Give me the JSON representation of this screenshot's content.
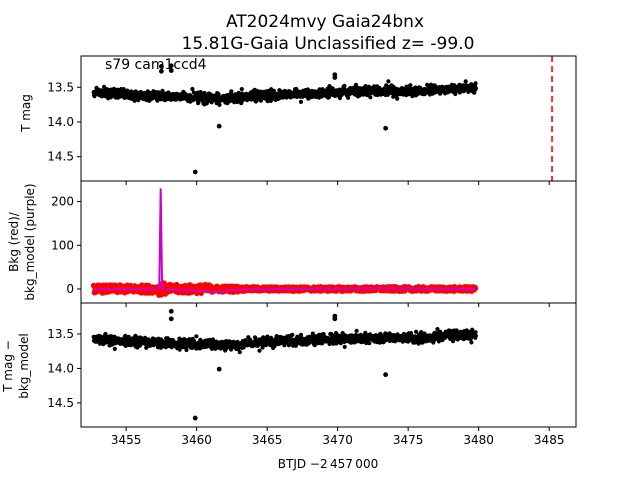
{
  "figure": {
    "title_line1": "AT2024mvy  Gaia24bnx",
    "title_line2": "15.81G-Gaia Unclassified z= -99.0",
    "annotation": "s79 cam1ccd4",
    "xlabel": "BTJD −2 457 000"
  },
  "chart_data": [
    {
      "type": "scatter",
      "panel": "top",
      "ylabel": "T mag",
      "y_inverted": true,
      "xlim": [
        3451.8,
        3486.9
      ],
      "ylim": [
        14.85,
        13.05
      ],
      "y_ticks": [
        "13.5",
        "14.0",
        "14.5"
      ],
      "y_tick_values": [
        13.5,
        14.0,
        14.5
      ],
      "series": [
        {
          "color": "#000000",
          "marker": "dot",
          "trend": [
            [
              3452.7,
              13.58
            ],
            [
              3455.0,
              13.6
            ],
            [
              3457.5,
              13.63
            ],
            [
              3460.0,
              13.65
            ],
            [
              3462.5,
              13.66
            ],
            [
              3464.0,
              13.63
            ],
            [
              3467.0,
              13.6
            ],
            [
              3470.0,
              13.57
            ],
            [
              3472.5,
              13.56
            ],
            [
              3475.0,
              13.55
            ],
            [
              3477.5,
              13.53
            ],
            [
              3479.8,
              13.51
            ]
          ],
          "scatter_width": 0.035,
          "outliers": [
            [
              3457.5,
              13.27
            ],
            [
              3457.5,
              13.2
            ],
            [
              3458.2,
              13.19
            ],
            [
              3458.2,
              13.26
            ],
            [
              3459.9,
              14.72
            ],
            [
              3461.6,
              14.06
            ],
            [
              3469.8,
              13.32
            ],
            [
              3469.8,
              13.36
            ],
            [
              3473.4,
              14.09
            ]
          ]
        }
      ],
      "vlines": [
        {
          "x": 3485.2,
          "color": "#ff0000",
          "style": "dashed"
        }
      ]
    },
    {
      "type": "line",
      "panel": "middle",
      "ylabel_line1": "Bkg (red)/",
      "ylabel_line2": "bkg_model (purple)",
      "xlim": [
        3451.8,
        3486.9
      ],
      "ylim": [
        -32,
        247
      ],
      "y_ticks": [
        "0",
        "100",
        "200"
      ],
      "y_tick_values": [
        0,
        100,
        200
      ],
      "series": [
        {
          "color": "#ff0000",
          "style": "band",
          "segments": [
            [
              3452.7,
              3457.3,
              9
            ],
            [
              3457.3,
              3457.8,
              14
            ],
            [
              3457.8,
              3461.0,
              10
            ],
            [
              3461.0,
              3463.0,
              7
            ],
            [
              3463.0,
              3479.8,
              5
            ]
          ]
        },
        {
          "color": "#cc00cc",
          "style": "line",
          "points": [
            [
              3452.7,
              0
            ],
            [
              3455.0,
              0
            ],
            [
              3457.2,
              1
            ],
            [
              3457.35,
              5
            ],
            [
              3457.45,
              230
            ],
            [
              3457.55,
              4
            ],
            [
              3457.7,
              0
            ],
            [
              3459.0,
              -2
            ],
            [
              3460.5,
              -4
            ],
            [
              3461.5,
              -7
            ],
            [
              3462.3,
              -3
            ],
            [
              3463.0,
              -1
            ],
            [
              3466.0,
              0
            ],
            [
              3470.0,
              1
            ],
            [
              3473.0,
              2
            ],
            [
              3476.0,
              1
            ],
            [
              3479.8,
              0
            ]
          ]
        }
      ]
    },
    {
      "type": "scatter",
      "panel": "bottom",
      "ylabel_line1": "T mag −",
      "ylabel_line2": "bkg_model",
      "y_inverted": true,
      "xlim": [
        3451.8,
        3486.9
      ],
      "ylim": [
        14.85,
        13.05
      ],
      "y_ticks": [
        "13.5",
        "14.0",
        "14.5"
      ],
      "y_tick_values": [
        13.5,
        14.0,
        14.5
      ],
      "x_ticks": [
        "3455",
        "3460",
        "3465",
        "3470",
        "3475",
        "3480",
        "3485"
      ],
      "x_tick_values": [
        3455,
        3460,
        3465,
        3470,
        3475,
        3480,
        3485
      ],
      "series": [
        {
          "color": "#000000",
          "marker": "dot",
          "trend": [
            [
              3452.7,
              13.58
            ],
            [
              3455.0,
              13.6
            ],
            [
              3457.5,
              13.63
            ],
            [
              3460.0,
              13.65
            ],
            [
              3462.5,
              13.66
            ],
            [
              3464.0,
              13.63
            ],
            [
              3467.0,
              13.6
            ],
            [
              3470.0,
              13.57
            ],
            [
              3472.5,
              13.56
            ],
            [
              3475.0,
              13.55
            ],
            [
              3477.5,
              13.53
            ],
            [
              3479.8,
              13.51
            ]
          ],
          "scatter_width": 0.035,
          "outliers": [
            [
              3458.2,
              13.17
            ],
            [
              3458.2,
              13.28
            ],
            [
              3459.9,
              14.72
            ],
            [
              3461.6,
              14.01
            ],
            [
              3469.8,
              13.24
            ],
            [
              3469.8,
              13.28
            ],
            [
              3473.4,
              14.09
            ]
          ]
        }
      ]
    }
  ]
}
